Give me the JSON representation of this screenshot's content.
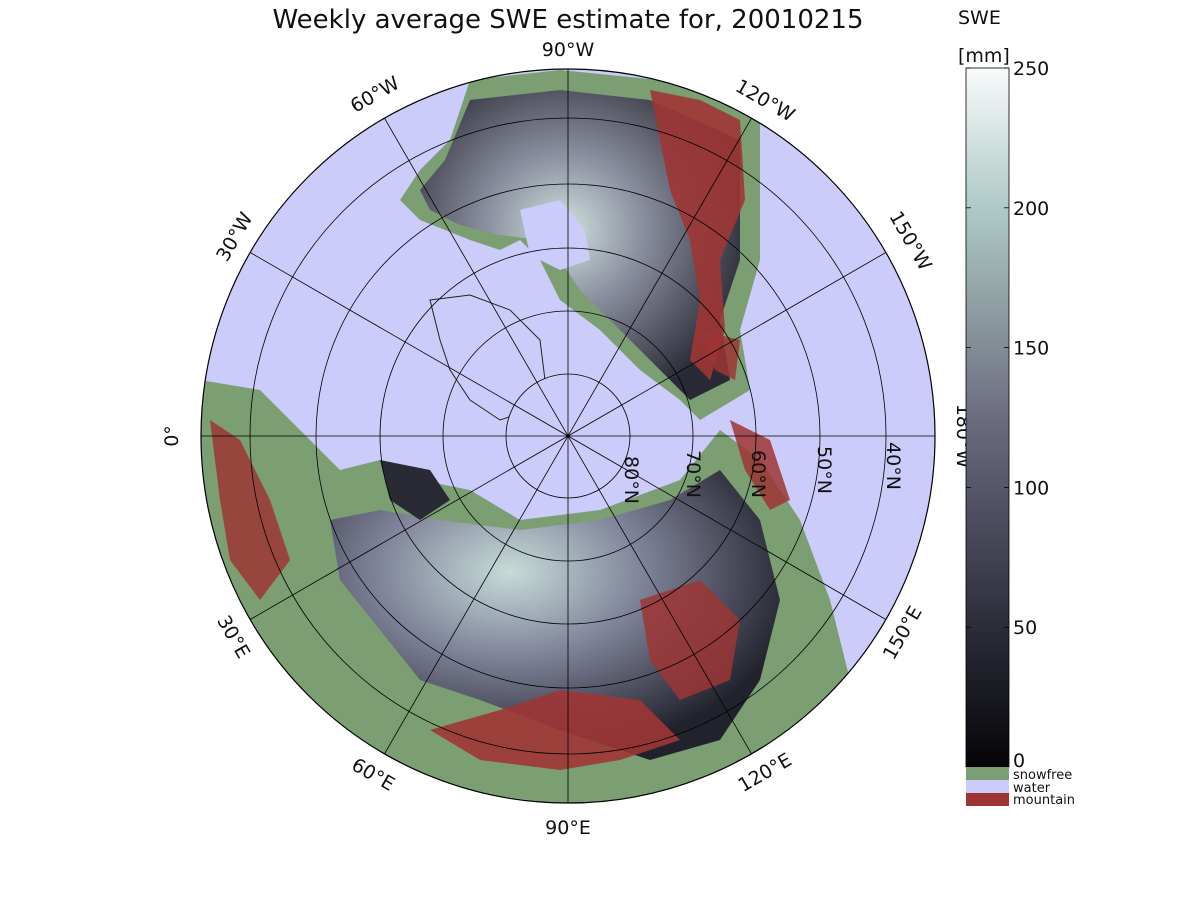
{
  "title": "Weekly average SWE estimate for, 20010215",
  "colorbar": {
    "label_line1": "SWE",
    "label_line2": "[mm]",
    "ticks": [
      "0",
      "50",
      "100",
      "150",
      "200",
      "250"
    ],
    "tick_values": [
      0,
      50,
      100,
      150,
      200,
      250
    ],
    "range": [
      0,
      250
    ],
    "legend": [
      {
        "label": "snowfree",
        "color": "#7b9e72"
      },
      {
        "label": "water",
        "color": "#ccccfa"
      },
      {
        "label": "mountain",
        "color": "#9e3535"
      }
    ]
  },
  "longitude_labels": [
    {
      "text": "90°W",
      "lon": "90W"
    },
    {
      "text": "120°W",
      "lon": "120W"
    },
    {
      "text": "150°W",
      "lon": "150W"
    },
    {
      "text": "180°W",
      "lon": "180W"
    },
    {
      "text": "150°E",
      "lon": "150E"
    },
    {
      "text": "120°E",
      "lon": "120E"
    },
    {
      "text": "90°E",
      "lon": "90E"
    },
    {
      "text": "60°E",
      "lon": "60E"
    },
    {
      "text": "30°E",
      "lon": "30E"
    },
    {
      "text": "0°",
      "lon": "0"
    },
    {
      "text": "30°W",
      "lon": "30W"
    },
    {
      "text": "60°W",
      "lon": "60W"
    }
  ],
  "latitude_labels": [
    "80°N",
    "70°N",
    "60°N",
    "50°N",
    "40°N"
  ],
  "colors": {
    "water": "#ccccfa",
    "snowfree": "#7b9e72",
    "mountain": "#9e3535",
    "swe_low": "#111118",
    "swe_mid": "#5a5a70",
    "swe_high": "#d4e8e4"
  }
}
